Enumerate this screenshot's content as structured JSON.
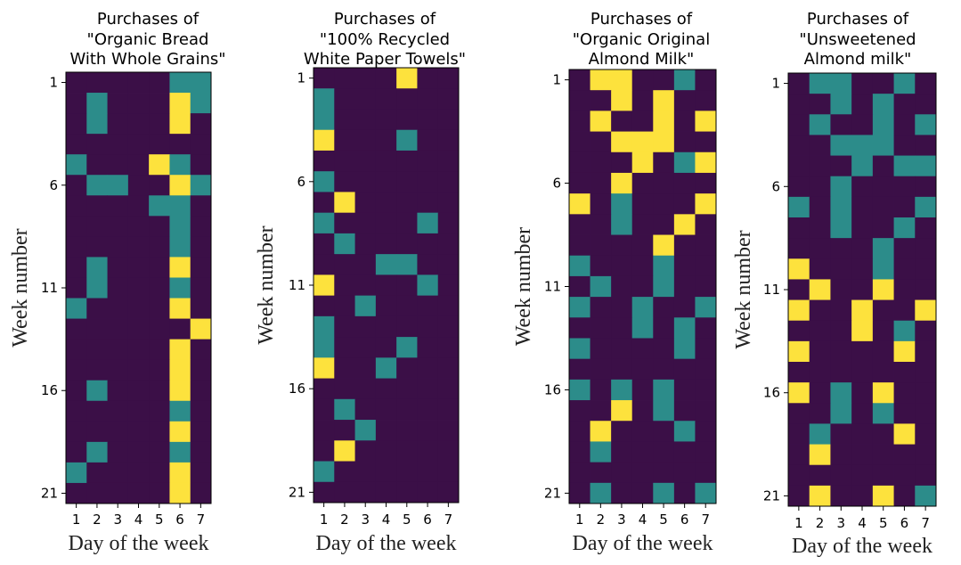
{
  "colors": {
    "none": "#3b0f47",
    "one": "#2c8c8a",
    "two": "#fde23d"
  },
  "chart_data": [
    {
      "type": "heatmap",
      "title_lines": [
        "Purchases of",
        "\"Organic Bread",
        "With Whole Grains\""
      ],
      "xlabel": "Day of the week",
      "ylabel": "Week number",
      "x_ticks": [
        "1",
        "2",
        "3",
        "4",
        "5",
        "6",
        "7"
      ],
      "y_ticks": [
        "1",
        "6",
        "11",
        "16",
        "21"
      ],
      "values": [
        [
          0,
          0,
          0,
          0,
          0,
          1,
          1
        ],
        [
          0,
          1,
          0,
          0,
          0,
          2,
          1
        ],
        [
          0,
          1,
          0,
          0,
          0,
          2,
          0
        ],
        [
          0,
          0,
          0,
          0,
          0,
          0,
          0
        ],
        [
          1,
          0,
          0,
          0,
          2,
          1,
          0
        ],
        [
          0,
          1,
          1,
          0,
          0,
          2,
          1
        ],
        [
          0,
          0,
          0,
          0,
          1,
          1,
          0
        ],
        [
          0,
          0,
          0,
          0,
          0,
          1,
          0
        ],
        [
          0,
          0,
          0,
          0,
          0,
          1,
          0
        ],
        [
          0,
          1,
          0,
          0,
          0,
          2,
          0
        ],
        [
          0,
          1,
          0,
          0,
          0,
          1,
          0
        ],
        [
          1,
          0,
          0,
          0,
          0,
          2,
          0
        ],
        [
          0,
          0,
          0,
          0,
          0,
          0,
          2
        ],
        [
          0,
          0,
          0,
          0,
          0,
          2,
          0
        ],
        [
          0,
          0,
          0,
          0,
          0,
          2,
          0
        ],
        [
          0,
          1,
          0,
          0,
          0,
          2,
          0
        ],
        [
          0,
          0,
          0,
          0,
          0,
          1,
          0
        ],
        [
          0,
          0,
          0,
          0,
          0,
          2,
          0
        ],
        [
          0,
          1,
          0,
          0,
          0,
          1,
          0
        ],
        [
          1,
          0,
          0,
          0,
          0,
          2,
          0
        ],
        [
          0,
          0,
          0,
          0,
          0,
          2,
          0
        ]
      ]
    },
    {
      "type": "heatmap",
      "title_lines": [
        "Purchases of",
        "\"100% Recycled",
        "White Paper Towels\""
      ],
      "xlabel": "Day of the week",
      "ylabel": "Week number",
      "x_ticks": [
        "1",
        "2",
        "3",
        "4",
        "5",
        "6",
        "7"
      ],
      "y_ticks": [
        "1",
        "6",
        "11",
        "16",
        "21"
      ],
      "values": [
        [
          0,
          0,
          0,
          0,
          2,
          0,
          0
        ],
        [
          1,
          0,
          0,
          0,
          0,
          0,
          0
        ],
        [
          1,
          0,
          0,
          0,
          0,
          0,
          0
        ],
        [
          2,
          0,
          0,
          0,
          1,
          0,
          0
        ],
        [
          0,
          0,
          0,
          0,
          0,
          0,
          0
        ],
        [
          1,
          0,
          0,
          0,
          0,
          0,
          0
        ],
        [
          0,
          2,
          0,
          0,
          0,
          0,
          0
        ],
        [
          1,
          0,
          0,
          0,
          0,
          1,
          0
        ],
        [
          0,
          1,
          0,
          0,
          0,
          0,
          0
        ],
        [
          0,
          0,
          0,
          1,
          1,
          0,
          0
        ],
        [
          2,
          0,
          0,
          0,
          0,
          1,
          0
        ],
        [
          0,
          0,
          1,
          0,
          0,
          0,
          0
        ],
        [
          1,
          0,
          0,
          0,
          0,
          0,
          0
        ],
        [
          1,
          0,
          0,
          0,
          1,
          0,
          0
        ],
        [
          2,
          0,
          0,
          1,
          0,
          0,
          0
        ],
        [
          0,
          0,
          0,
          0,
          0,
          0,
          0
        ],
        [
          0,
          1,
          0,
          0,
          0,
          0,
          0
        ],
        [
          0,
          0,
          1,
          0,
          0,
          0,
          0
        ],
        [
          0,
          2,
          0,
          0,
          0,
          0,
          0
        ],
        [
          1,
          0,
          0,
          0,
          0,
          0,
          0
        ],
        [
          0,
          0,
          0,
          0,
          0,
          0,
          0
        ]
      ]
    },
    {
      "type": "heatmap",
      "title_lines": [
        "Purchases of",
        "\"Organic Original",
        "Almond Milk\""
      ],
      "xlabel": "Day of the week",
      "ylabel": "Week number",
      "x_ticks": [
        "1",
        "2",
        "3",
        "4",
        "5",
        "6",
        "7"
      ],
      "y_ticks": [
        "1",
        "6",
        "11",
        "16",
        "21"
      ],
      "values": [
        [
          0,
          2,
          2,
          0,
          0,
          1,
          0
        ],
        [
          0,
          0,
          2,
          0,
          2,
          0,
          0
        ],
        [
          0,
          2,
          0,
          0,
          2,
          0,
          2
        ],
        [
          0,
          0,
          2,
          2,
          2,
          0,
          0
        ],
        [
          0,
          0,
          0,
          2,
          0,
          1,
          2
        ],
        [
          0,
          0,
          2,
          0,
          0,
          0,
          0
        ],
        [
          2,
          0,
          1,
          0,
          0,
          0,
          2
        ],
        [
          0,
          0,
          1,
          0,
          0,
          2,
          0
        ],
        [
          0,
          0,
          0,
          0,
          2,
          0,
          0
        ],
        [
          1,
          0,
          0,
          0,
          1,
          0,
          0
        ],
        [
          0,
          1,
          0,
          0,
          1,
          0,
          0
        ],
        [
          1,
          0,
          0,
          1,
          0,
          0,
          1
        ],
        [
          0,
          0,
          0,
          1,
          0,
          1,
          0
        ],
        [
          1,
          0,
          0,
          0,
          0,
          1,
          0
        ],
        [
          0,
          0,
          0,
          0,
          0,
          0,
          0
        ],
        [
          1,
          0,
          1,
          0,
          1,
          0,
          0
        ],
        [
          0,
          0,
          2,
          0,
          1,
          0,
          0
        ],
        [
          0,
          2,
          0,
          0,
          0,
          1,
          0
        ],
        [
          0,
          1,
          0,
          0,
          0,
          0,
          0
        ],
        [
          0,
          0,
          0,
          0,
          0,
          0,
          0
        ],
        [
          0,
          1,
          0,
          0,
          1,
          0,
          1
        ]
      ]
    },
    {
      "type": "heatmap",
      "title_lines": [
        "Purchases of",
        "\"Unsweetened",
        "Almond milk\""
      ],
      "xlabel": "Day of the week",
      "ylabel": "Week number",
      "x_ticks": [
        "1",
        "2",
        "3",
        "4",
        "5",
        "6",
        "7"
      ],
      "y_ticks": [
        "1",
        "6",
        "11",
        "16",
        "21"
      ],
      "values": [
        [
          0,
          1,
          1,
          0,
          0,
          1,
          0
        ],
        [
          0,
          0,
          1,
          0,
          1,
          0,
          0
        ],
        [
          0,
          1,
          0,
          0,
          1,
          0,
          1
        ],
        [
          0,
          0,
          1,
          1,
          1,
          0,
          0
        ],
        [
          0,
          0,
          0,
          1,
          0,
          1,
          1
        ],
        [
          0,
          0,
          1,
          0,
          0,
          0,
          0
        ],
        [
          1,
          0,
          1,
          0,
          0,
          0,
          1
        ],
        [
          0,
          0,
          1,
          0,
          0,
          1,
          0
        ],
        [
          0,
          0,
          0,
          0,
          1,
          0,
          0
        ],
        [
          2,
          0,
          0,
          0,
          1,
          0,
          0
        ],
        [
          0,
          2,
          0,
          0,
          2,
          0,
          0
        ],
        [
          2,
          0,
          0,
          2,
          0,
          0,
          2
        ],
        [
          0,
          0,
          0,
          2,
          0,
          1,
          0
        ],
        [
          2,
          0,
          0,
          0,
          0,
          2,
          0
        ],
        [
          0,
          0,
          0,
          0,
          0,
          0,
          0
        ],
        [
          2,
          0,
          1,
          0,
          2,
          0,
          0
        ],
        [
          0,
          0,
          1,
          0,
          1,
          0,
          0
        ],
        [
          0,
          1,
          0,
          0,
          0,
          2,
          0
        ],
        [
          0,
          2,
          0,
          0,
          0,
          0,
          0
        ],
        [
          0,
          0,
          0,
          0,
          0,
          0,
          0
        ],
        [
          0,
          2,
          0,
          0,
          2,
          0,
          1
        ]
      ]
    }
  ]
}
